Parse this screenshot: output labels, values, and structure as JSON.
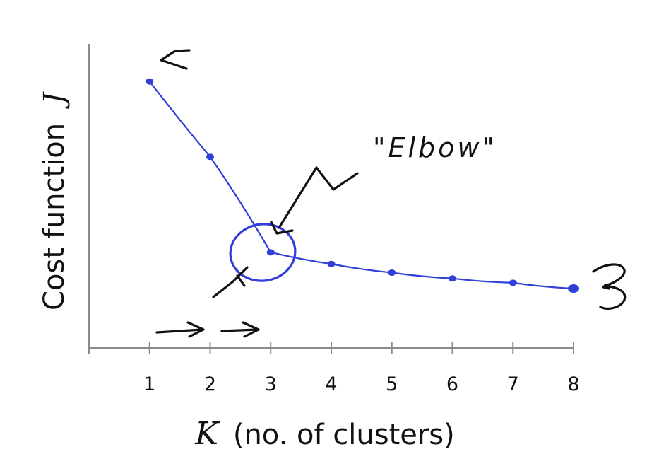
{
  "chart_data": {
    "type": "line",
    "title": "",
    "xlabel": "K",
    "xlabel_suffix": "(no. of clusters)",
    "ylabel": "Cost function",
    "ylabel_symbol": "J",
    "x": [
      1,
      2,
      3,
      4,
      5,
      6,
      7,
      8
    ],
    "series": [
      {
        "values": [
          9.2,
          6.6,
          3.3,
          2.9,
          2.6,
          2.4,
          2.25,
          2.05
        ]
      }
    ],
    "xlim": [
      0,
      8
    ],
    "ylim": [
      0,
      10.5
    ],
    "y_ticks_labeled": false,
    "grid": false,
    "line_color": "#2f3fd8",
    "annotations": [
      {
        "text": "\"Elbow\"",
        "target_x": 3
      }
    ]
  }
}
